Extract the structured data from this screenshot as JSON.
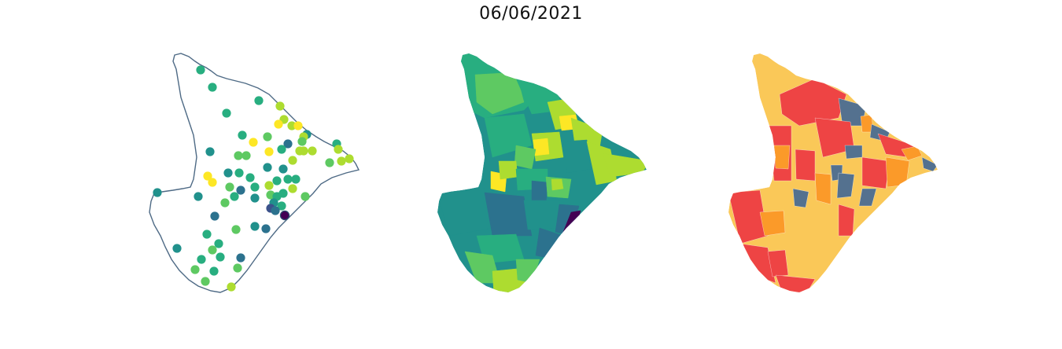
{
  "title": "06/06/2021",
  "colors": {
    "outline": "#4e6a85",
    "viridis": [
      "#440154",
      "#3b528b",
      "#2c728e",
      "#21918c",
      "#28ae80",
      "#5ec962",
      "#addc30",
      "#fde725"
    ],
    "categories": [
      "#fac858",
      "#ee4444",
      "#fb9a29",
      "#54718f"
    ]
  },
  "panels": [
    {
      "name": "station-points-map"
    },
    {
      "name": "continuous-choropleth-map"
    },
    {
      "name": "categorical-choropleth-map"
    }
  ]
}
